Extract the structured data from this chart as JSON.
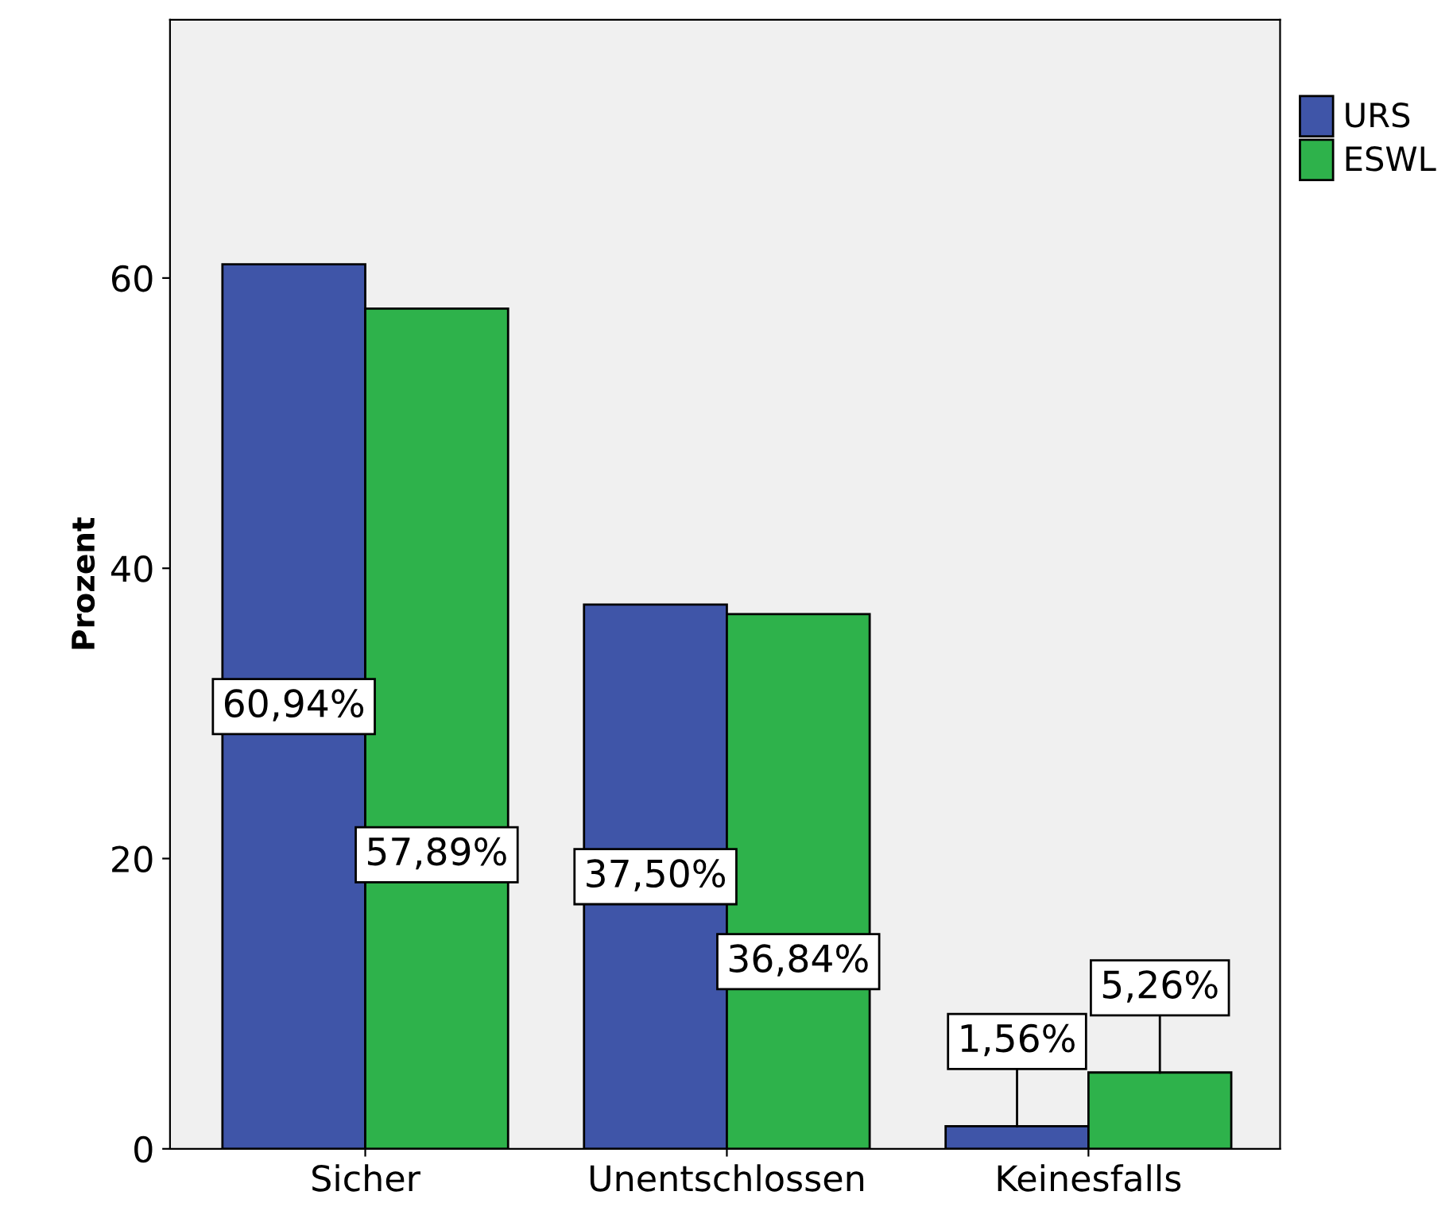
{
  "chart_data": {
    "type": "bar",
    "ylabel": "Prozent",
    "categories": [
      "Sicher",
      "Unentschlossen",
      "Keinesfalls"
    ],
    "series": [
      {
        "name": "URS",
        "color": "#3f55a8",
        "values": [
          60.94,
          37.5,
          1.56
        ],
        "value_labels": [
          "60,94%",
          "37,50%",
          "1,56%"
        ]
      },
      {
        "name": "ESWL",
        "color": "#2eb24b",
        "values": [
          57.89,
          36.84,
          5.26
        ],
        "value_labels": [
          "57,89%",
          "36,84%",
          "5,26%"
        ]
      }
    ],
    "ylim": [
      0,
      77.8
    ],
    "yticks": [
      0,
      20,
      40,
      60
    ],
    "grid": false,
    "legend": "top right"
  }
}
